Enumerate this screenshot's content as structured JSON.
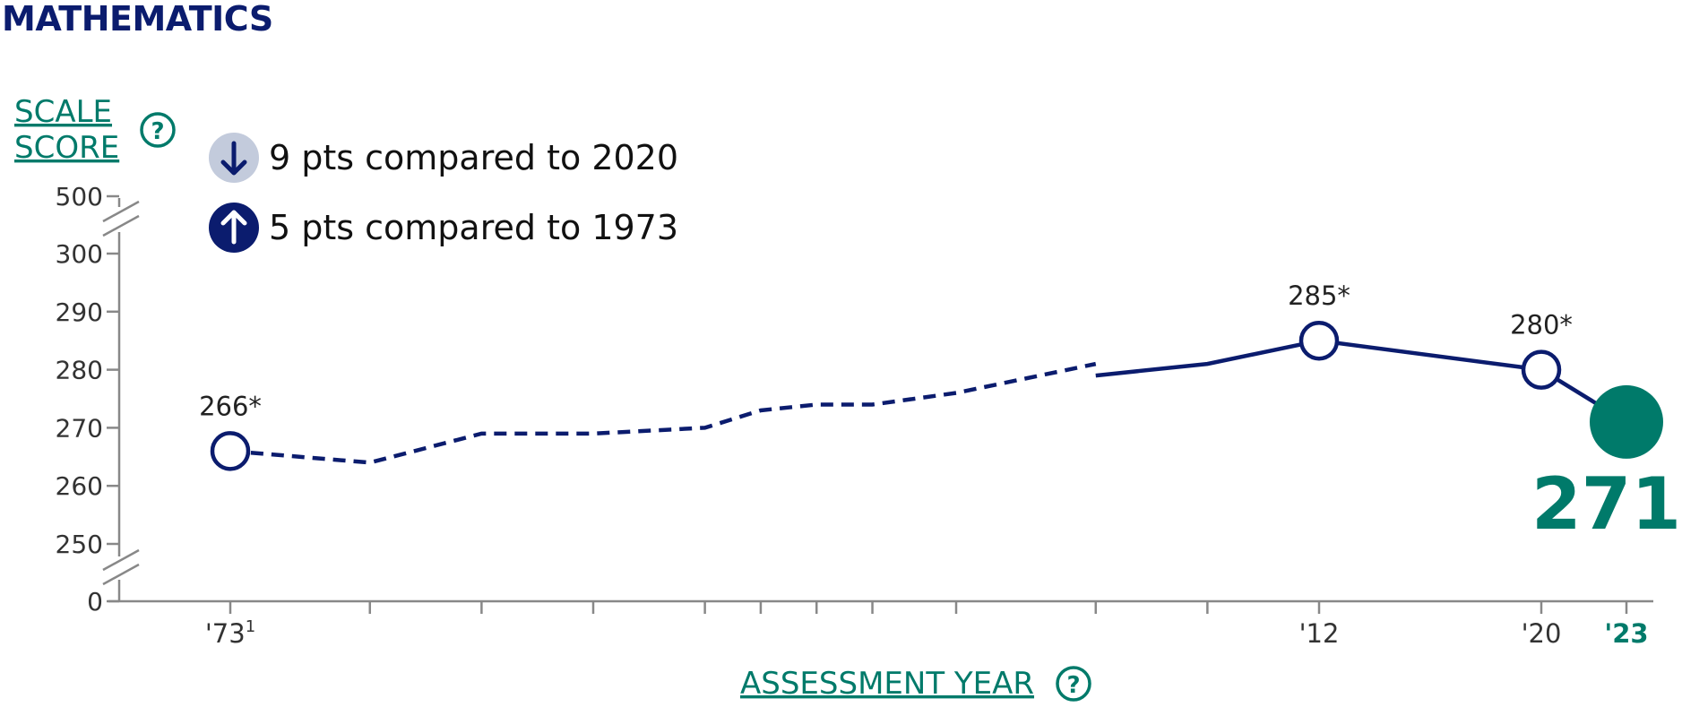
{
  "title": "MATHEMATICS",
  "y_axis_link": {
    "line1": "SCALE",
    "line2": "SCORE"
  },
  "x_axis_link": "ASSESSMENT YEAR",
  "comparisons": [
    {
      "direction": "down",
      "text": "9 pts compared to 2020",
      "icon": "arrow-down-icon"
    },
    {
      "direction": "up",
      "text": "5 pts compared to 1973",
      "icon": "arrow-up-icon"
    }
  ],
  "highlight": {
    "value": "271",
    "color": "#007a6a"
  },
  "colors": {
    "line": "#0b1c6e",
    "accent": "#007a6a",
    "axis": "#888888",
    "down_badge": "#c3cbdc"
  },
  "chart_data": {
    "type": "line",
    "title": "MATHEMATICS",
    "xlabel": "ASSESSMENT YEAR",
    "ylabel": "SCALE SCORE",
    "ylim": [
      250,
      300
    ],
    "y_ticks": [
      0,
      250,
      260,
      270,
      280,
      290,
      300,
      500
    ],
    "y_tick_labels": [
      "0",
      "250",
      "260",
      "270",
      "280",
      "290",
      "300",
      "500"
    ],
    "axis_breaks": "between 0 and 250; between 300 and 500",
    "x_tick_labels": [
      {
        "year": 1973,
        "label": "'73",
        "sup": "1"
      },
      {
        "year": 2012,
        "label": "'12"
      },
      {
        "year": 2020,
        "label": "'20"
      },
      {
        "year": 2023,
        "label": "'23",
        "highlight": true
      }
    ],
    "x_tick_years": [
      1973,
      1978,
      1982,
      1986,
      1990,
      1992,
      1994,
      1996,
      1999,
      2004,
      2008,
      2012,
      2020,
      2023
    ],
    "series": [
      {
        "points": [
          {
            "x": 1973,
            "y": 266,
            "label": "266*",
            "marker": "open"
          },
          {
            "x": 1978,
            "y": 264
          },
          {
            "x": 1982,
            "y": 269
          },
          {
            "x": 1986,
            "y": 269
          },
          {
            "x": 1990,
            "y": 270
          },
          {
            "x": 1992,
            "y": 273
          },
          {
            "x": 1994,
            "y": 274
          },
          {
            "x": 1996,
            "y": 274
          },
          {
            "x": 1999,
            "y": 276
          },
          {
            "x": 2004,
            "y": 281
          },
          {
            "x": 2004,
            "y": 279,
            "segment_break": true
          },
          {
            "x": 2008,
            "y": 281
          },
          {
            "x": 2012,
            "y": 285,
            "label": "285*",
            "marker": "open"
          },
          {
            "x": 2020,
            "y": 280,
            "label": "280*",
            "marker": "open"
          },
          {
            "x": 2023,
            "y": 271,
            "marker": "filled"
          }
        ],
        "dashed_through_year": 2004
      }
    ]
  }
}
